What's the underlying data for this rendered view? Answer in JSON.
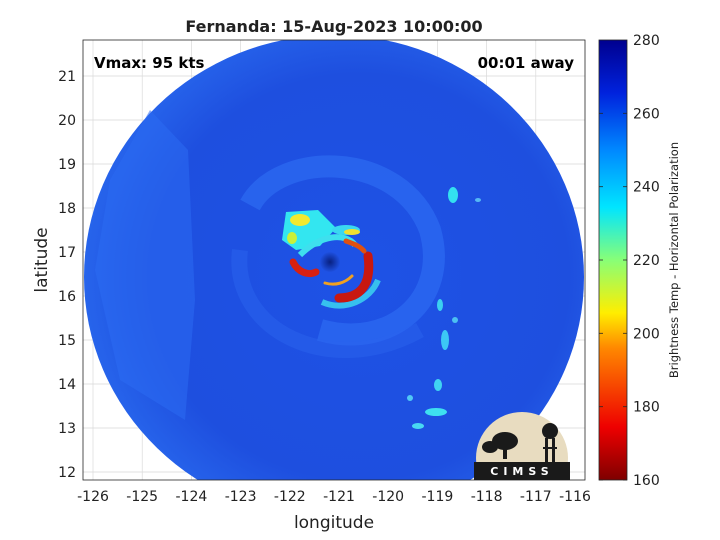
{
  "title": "Fernanda: 15-Aug-2023 10:00:00",
  "vmax_label": "Vmax: 95 kts",
  "time_label": "00:01 away",
  "xlabel": "longitude",
  "ylabel": "latitude",
  "colorbar_label": "Brightness Temp - Horizontal Polarization",
  "logo_text": "CIMSS",
  "x_ticks": [
    "-126",
    "-125",
    "-124",
    "-123",
    "-122",
    "-121",
    "-120",
    "-119",
    "-118",
    "-117",
    "-116"
  ],
  "y_ticks": [
    "12",
    "13",
    "14",
    "15",
    "16",
    "17",
    "18",
    "19",
    "20",
    "21"
  ],
  "colorbar_ticks": [
    "160",
    "180",
    "200",
    "220",
    "240",
    "260",
    "280"
  ],
  "colors": {
    "background_swath": "#1f4fe0",
    "eye": "#0a2a9a",
    "eyewall": "#d42010",
    "bands_cyan": "#33e6f0",
    "bands_yellow": "#f5ea2a"
  }
}
